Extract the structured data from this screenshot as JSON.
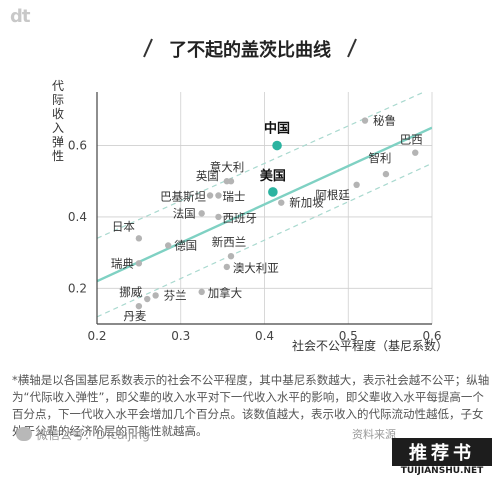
{
  "logo_text": "dt",
  "title": "了不起的盖茨比曲线",
  "note": "*横轴是以各国基尼系数表示的社会不公平程度，其中基尼系数越大，表示社会越不公平；纵轴为“代际收入弹性”，即父辈的收入水平对下一代收入水平的影响，即父辈收入水平每提高一个百分点，下一代收入水平会增加几个百分点。该数值越大，表示收入的代际流动性越低，子女处于父辈的经济阶层的可能性就越高。",
  "footer": {
    "wechat_icon": "wechat-icon",
    "account": "微信公号：DTcaijing",
    "source": "资料来源"
  },
  "watermark": {
    "main": "推荐书",
    "sub": "TUIJIANSHU.NET"
  },
  "colors": {
    "point": "#b4b4b4",
    "highlight": "#2bb3a0",
    "trend": "#7fd1c3",
    "band": "#a9d9cf",
    "grid": "#cfcfcf"
  },
  "chart_data": {
    "type": "scatter",
    "title": "了不起的盖茨比曲线",
    "xlabel": "社会不公平程度（基尼系数）",
    "ylabel": "代际收入弹性",
    "xlim": [
      0.2,
      0.6
    ],
    "ylim": [
      0.1,
      0.75
    ],
    "xticks": [
      0.2,
      0.3,
      0.4,
      0.5,
      0.6
    ],
    "yticks": [
      0.2,
      0.4,
      0.6
    ],
    "grid": true,
    "trend_line": {
      "x": [
        0.2,
        0.6
      ],
      "y": [
        0.22,
        0.65
      ]
    },
    "band_upper": {
      "x": [
        0.2,
        0.6
      ],
      "y": [
        0.34,
        0.76
      ]
    },
    "band_lower": {
      "x": [
        0.2,
        0.6
      ],
      "y": [
        0.12,
        0.55
      ]
    },
    "points": [
      {
        "label": "秘鲁",
        "x": 0.52,
        "y": 0.67,
        "highlight": false
      },
      {
        "label": "巴西",
        "x": 0.58,
        "y": 0.58,
        "highlight": false
      },
      {
        "label": "智利",
        "x": 0.545,
        "y": 0.52,
        "highlight": false
      },
      {
        "label": "阿根廷",
        "x": 0.51,
        "y": 0.49,
        "highlight": false
      },
      {
        "label": "中国",
        "x": 0.415,
        "y": 0.6,
        "highlight": true
      },
      {
        "label": "美国",
        "x": 0.41,
        "y": 0.47,
        "highlight": true
      },
      {
        "label": "新加坡",
        "x": 0.42,
        "y": 0.44,
        "highlight": false
      },
      {
        "label": "意大利",
        "x": 0.36,
        "y": 0.5,
        "highlight": false
      },
      {
        "label": "英国",
        "x": 0.355,
        "y": 0.5,
        "highlight": false
      },
      {
        "label": "瑞士",
        "x": 0.345,
        "y": 0.46,
        "highlight": false
      },
      {
        "label": "巴基斯坦",
        "x": 0.335,
        "y": 0.46,
        "highlight": false
      },
      {
        "label": "法国",
        "x": 0.325,
        "y": 0.41,
        "highlight": false
      },
      {
        "label": "西班牙",
        "x": 0.345,
        "y": 0.4,
        "highlight": false
      },
      {
        "label": "日本",
        "x": 0.25,
        "y": 0.34,
        "highlight": false
      },
      {
        "label": "德国",
        "x": 0.285,
        "y": 0.32,
        "highlight": false
      },
      {
        "label": "新西兰",
        "x": 0.36,
        "y": 0.29,
        "highlight": false
      },
      {
        "label": "澳大利亚",
        "x": 0.355,
        "y": 0.26,
        "highlight": false
      },
      {
        "label": "瑞典",
        "x": 0.25,
        "y": 0.27,
        "highlight": false
      },
      {
        "label": "加拿大",
        "x": 0.325,
        "y": 0.19,
        "highlight": false
      },
      {
        "label": "芬兰",
        "x": 0.27,
        "y": 0.18,
        "highlight": false
      },
      {
        "label": "挪威",
        "x": 0.26,
        "y": 0.17,
        "highlight": false
      },
      {
        "label": "丹麦",
        "x": 0.25,
        "y": 0.15,
        "highlight": false
      }
    ]
  }
}
